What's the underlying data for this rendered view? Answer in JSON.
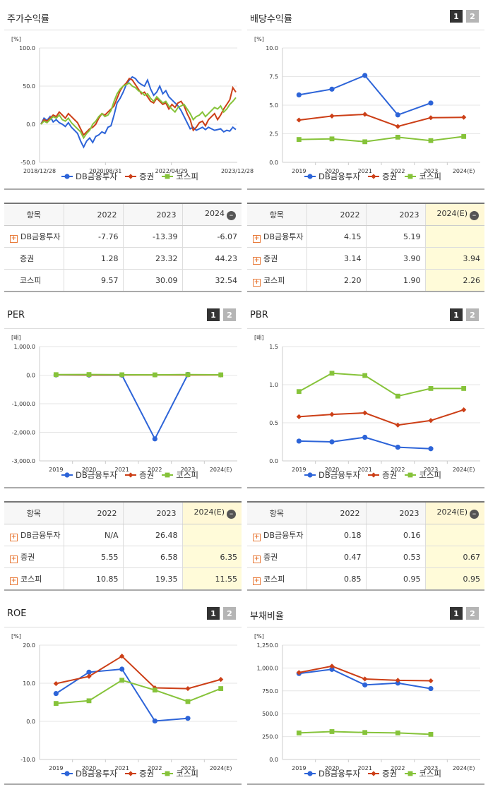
{
  "colors": {
    "s1": "#2d64d8",
    "s2": "#cc3f17",
    "s3": "#86c33a"
  },
  "legend": [
    "DB금융투자",
    "증권",
    "코스피"
  ],
  "tabs": [
    "1",
    "2"
  ],
  "chart_data": [
    {
      "id": "price",
      "type": "line",
      "title": "주가수익률",
      "unit": "[%]",
      "yticks": [
        "100.0",
        "50.0",
        "0.0",
        "-50.0"
      ],
      "ylim": [
        -50,
        100
      ],
      "xticks": [
        "2018/12/28",
        "2020/08/31",
        "2022/04/29",
        "2023/12/28"
      ],
      "xrange": [
        "2018/12/28",
        "2024/01/31"
      ],
      "series": [
        {
          "name": "DB금융투자",
          "values": [
            0,
            8,
            5,
            10,
            3,
            6,
            2,
            0,
            -3,
            2,
            -4,
            -8,
            -12,
            -22,
            -30,
            -22,
            -18,
            -24,
            -16,
            -14,
            -10,
            -12,
            -4,
            -2,
            12,
            28,
            34,
            42,
            52,
            58,
            62,
            60,
            55,
            52,
            50,
            58,
            46,
            38,
            42,
            50,
            40,
            44,
            36,
            32,
            28,
            24,
            18,
            10,
            2,
            -6,
            -4,
            -8,
            -6,
            -4,
            -7,
            -4,
            -6,
            -8,
            -7,
            -6,
            -10,
            -8,
            -9,
            -4,
            -7
          ]
        },
        {
          "name": "증권",
          "values": [
            0,
            6,
            4,
            8,
            12,
            10,
            16,
            12,
            8,
            14,
            10,
            6,
            2,
            -6,
            -14,
            -10,
            -6,
            -4,
            0,
            8,
            14,
            12,
            16,
            20,
            24,
            34,
            44,
            50,
            54,
            60,
            58,
            52,
            46,
            40,
            42,
            36,
            30,
            28,
            34,
            30,
            26,
            28,
            20,
            26,
            22,
            28,
            30,
            24,
            14,
            6,
            -8,
            -4,
            2,
            4,
            -2,
            6,
            10,
            14,
            6,
            12,
            20,
            26,
            32,
            48,
            42
          ]
        },
        {
          "name": "코스피",
          "values": [
            0,
            4,
            2,
            6,
            10,
            8,
            12,
            6,
            4,
            8,
            2,
            -2,
            -6,
            -10,
            -18,
            -12,
            -8,
            0,
            4,
            10,
            14,
            10,
            12,
            18,
            30,
            40,
            46,
            50,
            52,
            54,
            50,
            48,
            44,
            42,
            38,
            40,
            34,
            30,
            36,
            32,
            28,
            30,
            24,
            20,
            16,
            22,
            24,
            26,
            20,
            14,
            6,
            10,
            12,
            16,
            10,
            14,
            18,
            22,
            20,
            24,
            16,
            20,
            26,
            30,
            35
          ]
        }
      ]
    },
    {
      "id": "dividend",
      "type": "line",
      "title": "배당수익률",
      "unit": "[%]",
      "yticks": [
        "10.0",
        "7.5",
        "5.0",
        "2.5",
        "0.0"
      ],
      "ylim": [
        0,
        10
      ],
      "categories": [
        "2019",
        "2020",
        "2021",
        "2022",
        "2023",
        "2024(E)"
      ],
      "series": [
        {
          "name": "DB금융투자",
          "values": [
            5.9,
            6.4,
            7.6,
            4.15,
            5.19,
            null
          ]
        },
        {
          "name": "증권",
          "values": [
            3.7,
            4.05,
            4.2,
            3.14,
            3.9,
            3.94
          ]
        },
        {
          "name": "코스피",
          "values": [
            2.0,
            2.05,
            1.8,
            2.2,
            1.9,
            2.26
          ]
        }
      ]
    },
    {
      "id": "per",
      "type": "line",
      "title": "PER",
      "unit": "[배]",
      "yticks": [
        "1,000.0",
        "0.0",
        "-1,000.0",
        "-2,000.0",
        "-3,000.0"
      ],
      "ylim": [
        -3000,
        1000
      ],
      "categories": [
        "2019",
        "2020",
        "2021",
        "2022",
        "2023",
        "2024(E)"
      ],
      "series": [
        {
          "name": "DB금융투자",
          "values": [
            10,
            5,
            0,
            -2230,
            26.48,
            null
          ]
        },
        {
          "name": "증권",
          "values": [
            12,
            8,
            6,
            5.55,
            6.58,
            6.35
          ]
        },
        {
          "name": "코스피",
          "values": [
            18,
            22,
            14,
            10.85,
            19.35,
            11.55
          ]
        }
      ]
    },
    {
      "id": "pbr",
      "type": "line",
      "title": "PBR",
      "unit": "[배]",
      "yticks": [
        "1.5",
        "1.0",
        "0.5",
        "0.0"
      ],
      "ylim": [
        0,
        1.5
      ],
      "categories": [
        "2019",
        "2020",
        "2021",
        "2022",
        "2023",
        "2024(E)"
      ],
      "series": [
        {
          "name": "DB금융투자",
          "values": [
            0.26,
            0.25,
            0.31,
            0.18,
            0.16,
            null
          ]
        },
        {
          "name": "증권",
          "values": [
            0.58,
            0.61,
            0.63,
            0.47,
            0.53,
            0.67
          ]
        },
        {
          "name": "코스피",
          "values": [
            0.91,
            1.15,
            1.12,
            0.85,
            0.95,
            0.95
          ]
        }
      ]
    },
    {
      "id": "roe",
      "type": "line",
      "title": "ROE",
      "unit": "[%]",
      "yticks": [
        "20.0",
        "10.0",
        "0.0",
        "-10.0"
      ],
      "ylim": [
        -10,
        20
      ],
      "categories": [
        "2019",
        "2020",
        "2021",
        "2022",
        "2023",
        "2024(E)"
      ],
      "series": [
        {
          "name": "DB금융투자",
          "values": [
            7.3,
            12.9,
            13.7,
            0.1,
            0.8,
            null
          ]
        },
        {
          "name": "증권",
          "values": [
            9.9,
            11.8,
            17.1,
            8.8,
            8.6,
            11.0
          ]
        },
        {
          "name": "코스피",
          "values": [
            4.7,
            5.4,
            10.8,
            8.2,
            5.2,
            8.6
          ]
        }
      ]
    },
    {
      "id": "debt",
      "type": "line",
      "title": "부채비율",
      "unit": "[%]",
      "yticks": [
        "1,250.0",
        "1,000.0",
        "750.0",
        "500.0",
        "250.0",
        "0.0"
      ],
      "ylim": [
        0,
        1250
      ],
      "categories": [
        "2019",
        "2020",
        "2021",
        "2022",
        "2023",
        "2024(E)"
      ],
      "series": [
        {
          "name": "DB금융투자",
          "values": [
            940,
            985,
            815,
            835,
            775,
            null
          ]
        },
        {
          "name": "증권",
          "values": [
            950,
            1020,
            880,
            865,
            860,
            null
          ]
        },
        {
          "name": "코스피",
          "values": [
            290,
            305,
            295,
            290,
            275,
            null
          ]
        }
      ]
    }
  ],
  "tables": {
    "price": {
      "header": [
        "항목",
        "2022",
        "2023",
        "2024"
      ],
      "rows": [
        {
          "label": "DB금융투자",
          "plus": true,
          "values": [
            "-7.76",
            "-13.39",
            "-6.07"
          ]
        },
        {
          "label": "증권",
          "plus": false,
          "values": [
            "1.28",
            "23.32",
            "44.23"
          ]
        },
        {
          "label": "코스피",
          "plus": false,
          "values": [
            "9.57",
            "30.09",
            "32.54"
          ]
        }
      ]
    },
    "dividend": {
      "header": [
        "항목",
        "2022",
        "2023",
        "2024(E)"
      ],
      "rows": [
        {
          "label": "DB금융투자",
          "plus": true,
          "values": [
            "4.15",
            "5.19",
            ""
          ]
        },
        {
          "label": "증권",
          "plus": true,
          "values": [
            "3.14",
            "3.90",
            "3.94"
          ]
        },
        {
          "label": "코스피",
          "plus": true,
          "values": [
            "2.20",
            "1.90",
            "2.26"
          ]
        }
      ]
    },
    "per": {
      "header": [
        "항목",
        "2022",
        "2023",
        "2024(E)"
      ],
      "rows": [
        {
          "label": "DB금융투자",
          "plus": true,
          "values": [
            "N/A",
            "26.48",
            ""
          ]
        },
        {
          "label": "증권",
          "plus": true,
          "values": [
            "5.55",
            "6.58",
            "6.35"
          ]
        },
        {
          "label": "코스피",
          "plus": true,
          "values": [
            "10.85",
            "19.35",
            "11.55"
          ]
        }
      ]
    },
    "pbr": {
      "header": [
        "항목",
        "2022",
        "2023",
        "2024(E)"
      ],
      "rows": [
        {
          "label": "DB금융투자",
          "plus": true,
          "values": [
            "0.18",
            "0.16",
            ""
          ]
        },
        {
          "label": "증권",
          "plus": true,
          "values": [
            "0.47",
            "0.53",
            "0.67"
          ]
        },
        {
          "label": "코스피",
          "plus": true,
          "values": [
            "0.85",
            "0.95",
            "0.95"
          ]
        }
      ]
    }
  }
}
